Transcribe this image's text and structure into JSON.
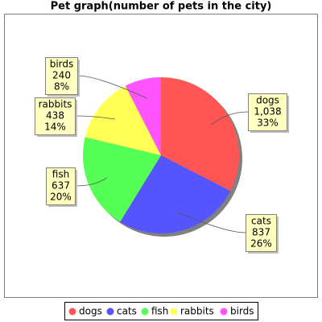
{
  "chart_data": {
    "type": "pie",
    "title": "Pet graph(number of pets in the city)",
    "categories": [
      "dogs",
      "cats",
      "fish",
      "rabbits",
      "birds"
    ],
    "values": [
      1038,
      837,
      637,
      438,
      240
    ],
    "value_labels": [
      "1,038",
      "837",
      "637",
      "438",
      "240"
    ],
    "percent_labels": [
      "33%",
      "26%",
      "20%",
      "14%",
      "8%"
    ],
    "colors": [
      "#ff5555",
      "#5555ff",
      "#55ff55",
      "#ffff55",
      "#ff55ff"
    ],
    "legend": "bottom"
  }
}
